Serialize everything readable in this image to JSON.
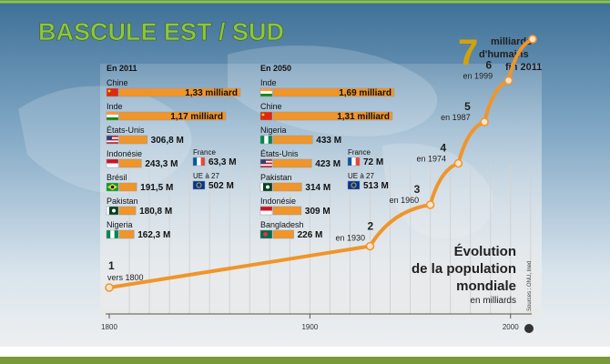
{
  "title": "BASCULE EST / SUD",
  "headline": {
    "number": "7",
    "line1": "milliards",
    "line2": "d'humains",
    "line3": "fin 2011"
  },
  "legend": {
    "line1": "Évolution",
    "line2": "de la population",
    "line3": "mondiale",
    "unit": "en milliards"
  },
  "source": "Sources : ONU, Ined",
  "colors": {
    "title": "#8dc63f",
    "bar": "#f0952a",
    "bar_outline": "#9a9a9a",
    "curve": "#f0952a",
    "marker_fill": "#fde2c8",
    "stripe": "#7a9a3a"
  },
  "chart_data": [
    {
      "type": "line",
      "x": [
        1800,
        1930,
        1960,
        1974,
        1987,
        1999,
        2011
      ],
      "y": [
        1,
        2,
        3,
        4,
        5,
        6,
        7
      ],
      "milestone_labels": [
        "1",
        "2",
        "3",
        "4",
        "5",
        "6"
      ],
      "milestone_years": [
        "vers 1800",
        "en 1930",
        "en 1960",
        "en 1974",
        "en 1987",
        "en 1999"
      ],
      "x_ticks": [
        "1800",
        "1900",
        "2000"
      ],
      "xlim": [
        1800,
        2011
      ],
      "grid": "vertical"
    },
    {
      "type": "bar",
      "title": "En 2011",
      "categories": [
        "Chine",
        "Inde",
        "États-Unis",
        "Indonésie",
        "Brésil",
        "Pakistan",
        "Nigeria"
      ],
      "values": [
        1330,
        1170,
        306.8,
        243.3,
        191.5,
        180.8,
        162.3
      ],
      "labels": [
        "1,33 milliard",
        "1,17 milliard",
        "306,8 M",
        "243,3 M",
        "191,5 M",
        "180,8 M",
        "162,3 M"
      ],
      "extra": [
        {
          "name": "France",
          "value": 63.3,
          "label": "63,3 M"
        },
        {
          "name": "UE à 27",
          "value": 502,
          "label": "502 M"
        }
      ]
    },
    {
      "type": "bar",
      "title": "En 2050",
      "categories": [
        "Inde",
        "Chine",
        "Nigeria",
        "États-Unis",
        "Pakistan",
        "Indonésie",
        "Bangladesh"
      ],
      "values": [
        1690,
        1310,
        433,
        423,
        314,
        309,
        226
      ],
      "labels": [
        "1,69 milliard",
        "1,31 milliard",
        "433 M",
        "423 M",
        "314 M",
        "309 M",
        "226 M"
      ],
      "extra": [
        {
          "name": "France",
          "value": 72,
          "label": "72 M"
        },
        {
          "name": "UE à 27",
          "value": 513,
          "label": "513 M"
        }
      ]
    }
  ]
}
